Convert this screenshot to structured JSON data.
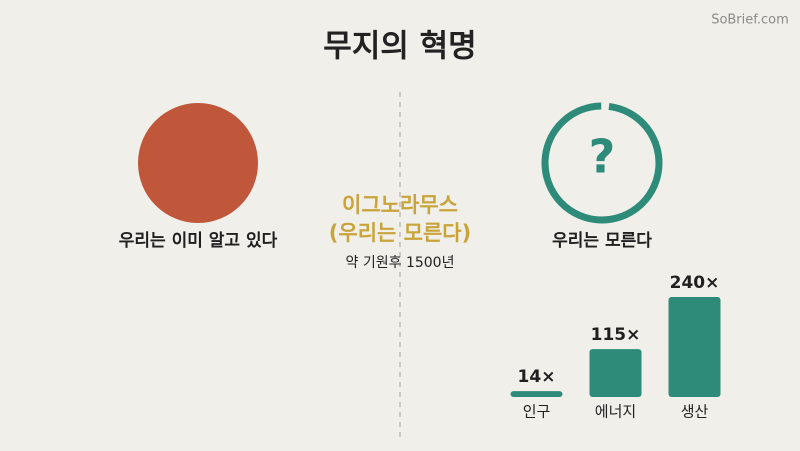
{
  "watermark": "SoBrief.com",
  "title": "무지의 혁명",
  "left": {
    "label": "우리는 이미 알고 있다"
  },
  "center": {
    "term": "이그노라무스",
    "gloss": "(우리는 모른다)",
    "date": "약 기원후 1500년"
  },
  "right": {
    "symbol": "?",
    "label": "우리는 모른다"
  },
  "chart_data": {
    "type": "bar",
    "categories": [
      "인구",
      "에너지",
      "생산"
    ],
    "values": [
      14,
      115,
      240
    ],
    "value_labels": [
      "14×",
      "115×",
      "240×"
    ],
    "color": "#2e8b7a"
  }
}
